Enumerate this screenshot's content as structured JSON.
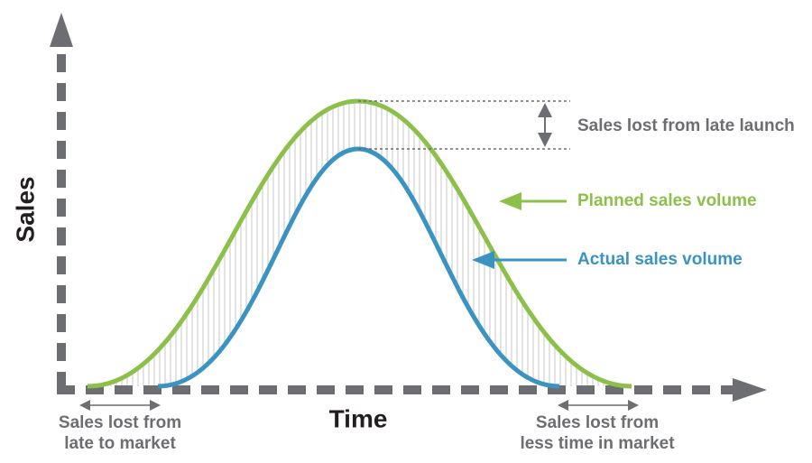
{
  "y_axis_label": "Sales",
  "x_axis_label": "Time",
  "annotations": {
    "late_launch": "Sales lost from late launch",
    "planned": "Planned sales volume",
    "actual": "Actual sales volume",
    "late_to_market": {
      "lines": [
        "Sales lost from",
        "late to market"
      ]
    },
    "less_time": {
      "lines": [
        "Sales lost from",
        "less time in market"
      ]
    }
  }
}
